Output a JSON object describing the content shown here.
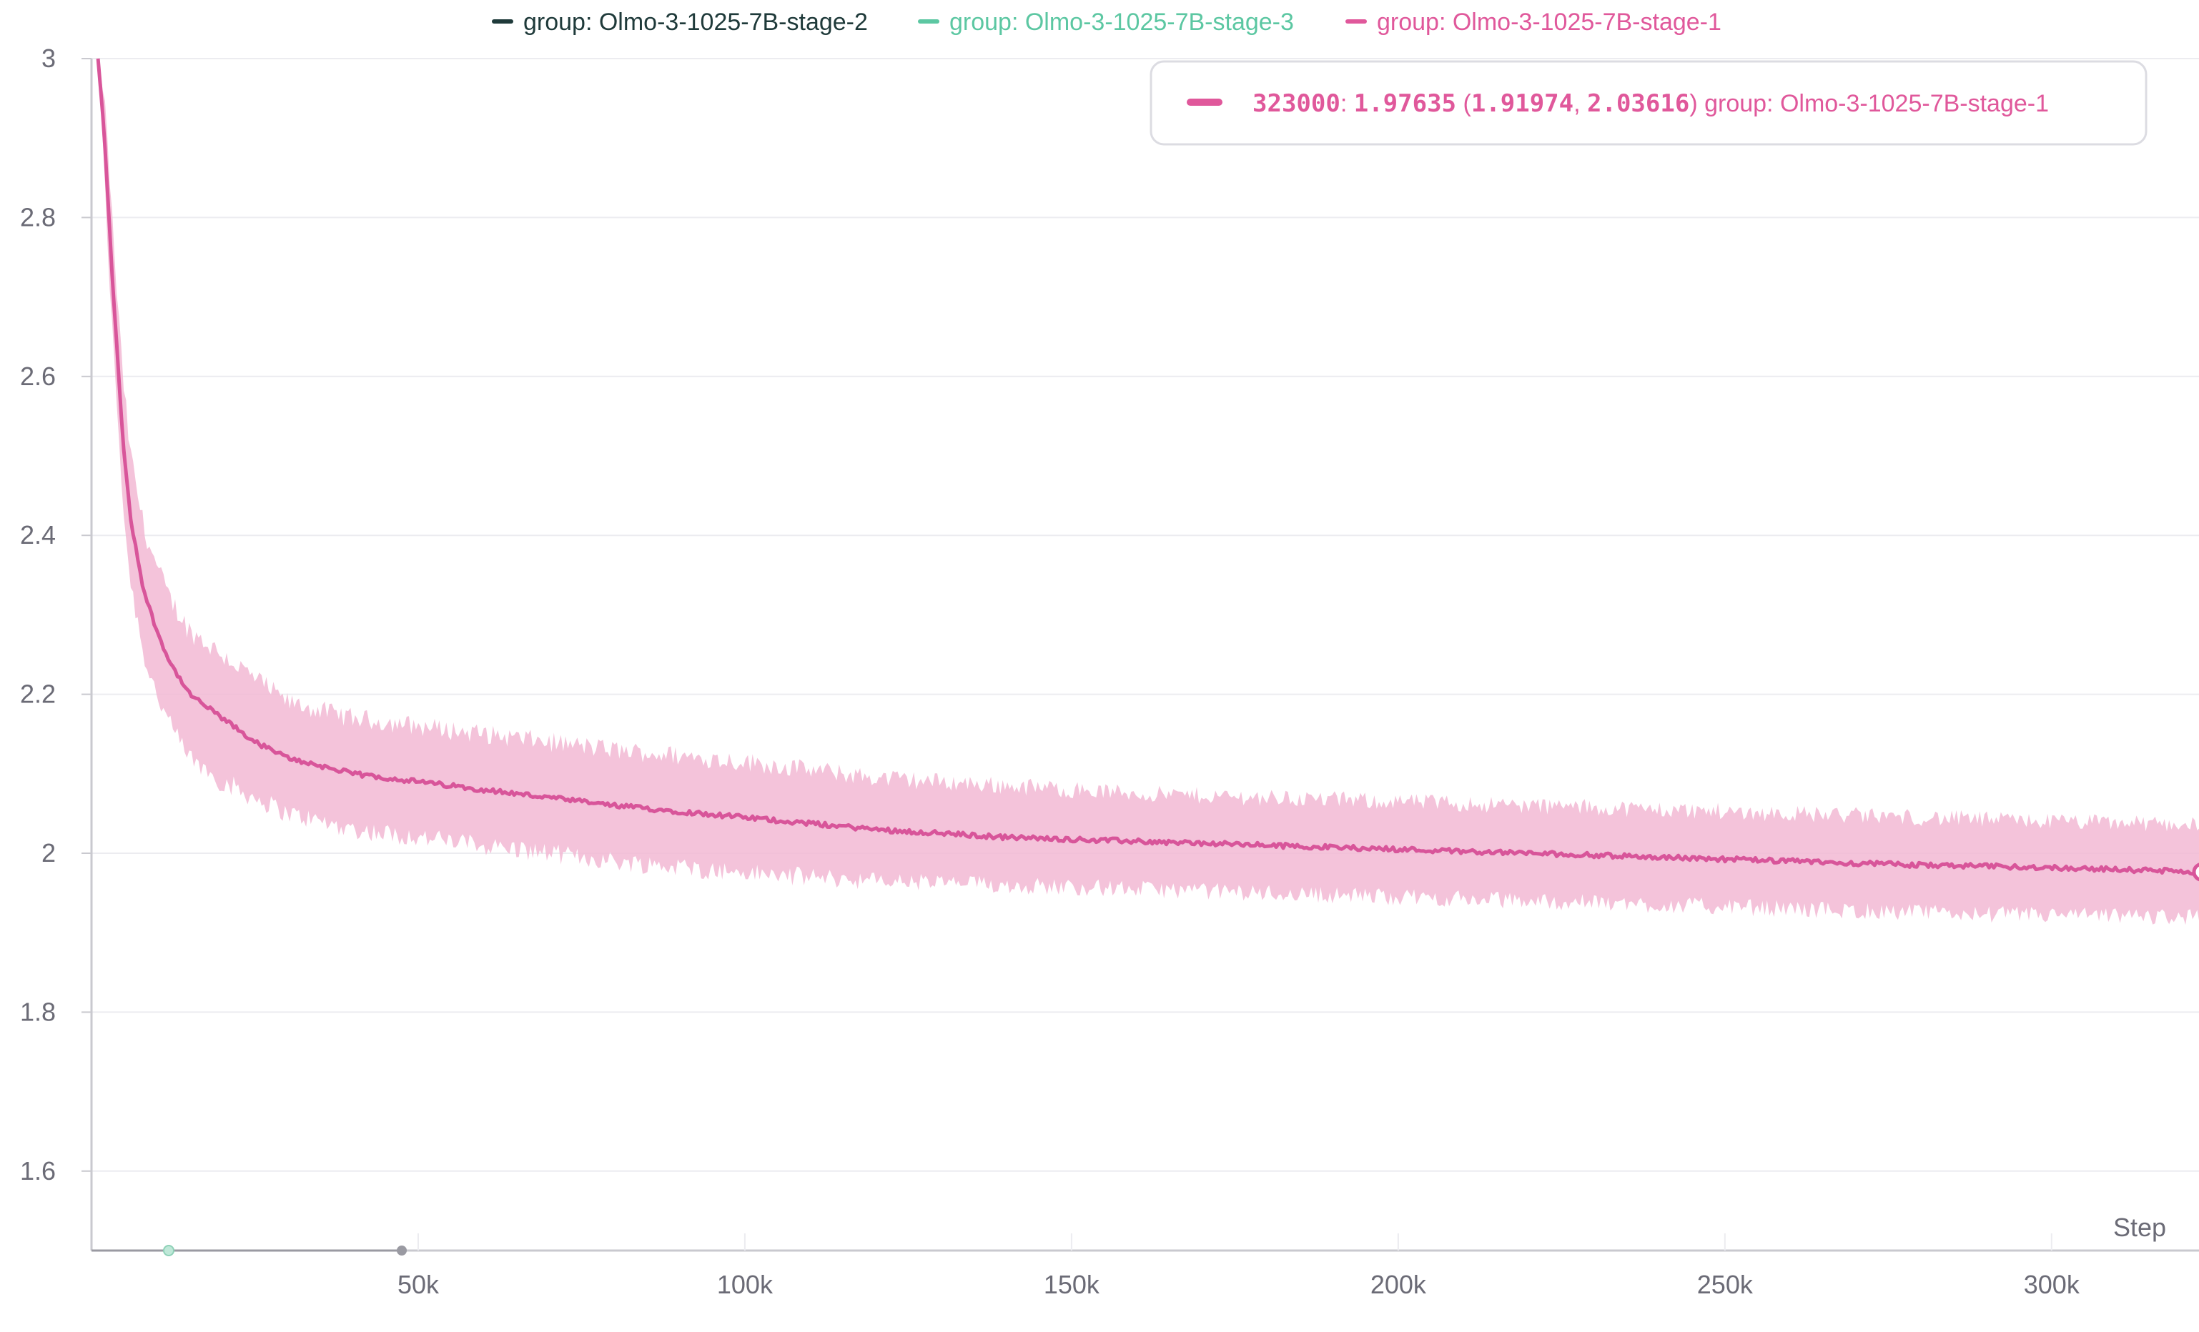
{
  "legend": {
    "items": [
      {
        "label": "group: Olmo-3-1025-7B-stage-2",
        "color": "#1f3a3a"
      },
      {
        "label": "group: Olmo-3-1025-7B-stage-3",
        "color": "#5cc7a2"
      },
      {
        "label": "group: Olmo-3-1025-7B-stage-1",
        "color": "#e0589b"
      }
    ]
  },
  "tooltip": {
    "step": "323000",
    "value": "1.97635",
    "low": "1.91974",
    "high": "2.03616",
    "group": "group: Olmo-3-1025-7B-stage-1",
    "color": "#e0589b"
  },
  "colors": {
    "line": "#d8559a",
    "band": "#f2b8d4",
    "grid": "#ececf0",
    "cursor": "#6fd3d8",
    "axis": "#c9c9cf"
  },
  "chart_data": {
    "type": "line",
    "title": "",
    "xlabel": "Step",
    "ylabel": "",
    "xlim": [
      0,
      323000
    ],
    "ylim": [
      1.5,
      3.0
    ],
    "grid": true,
    "legend_position": "top",
    "x_ticks": [
      50000,
      100000,
      150000,
      200000,
      250000,
      300000
    ],
    "x_tick_labels": [
      "50k",
      "100k",
      "150k",
      "200k",
      "250k",
      "300k"
    ],
    "y_ticks": [
      1.6,
      1.8,
      2.0,
      2.2,
      2.4,
      2.6,
      2.8,
      3.0
    ],
    "y_tick_labels": [
      "1.6",
      "1.8",
      "2",
      "2.2",
      "2.4",
      "2.6",
      "2.8",
      "3"
    ],
    "series": [
      {
        "name": "group: Olmo-3-1025-7B-stage-1",
        "color": "#e0589b",
        "x": [
          1000,
          2000,
          3000,
          4000,
          5000,
          6000,
          8000,
          10000,
          12000,
          15000,
          20000,
          25000,
          30000,
          40000,
          50000,
          60000,
          70000,
          80000,
          100000,
          120000,
          140000,
          160000,
          180000,
          200000,
          220000,
          240000,
          260000,
          280000,
          300000,
          323000
        ],
        "y": [
          3.0,
          2.9,
          2.75,
          2.62,
          2.5,
          2.42,
          2.33,
          2.28,
          2.24,
          2.2,
          2.17,
          2.14,
          2.12,
          2.1,
          2.09,
          2.08,
          2.07,
          2.06,
          2.045,
          2.03,
          2.02,
          2.015,
          2.01,
          2.005,
          2.0,
          1.995,
          1.99,
          1.985,
          1.982,
          1.97635
        ],
        "lower": [
          3.0,
          2.85,
          2.68,
          2.55,
          2.42,
          2.34,
          2.25,
          2.2,
          2.16,
          2.12,
          2.09,
          2.07,
          2.05,
          2.03,
          2.02,
          2.01,
          2.0,
          1.99,
          1.975,
          1.965,
          1.96,
          1.955,
          1.95,
          1.945,
          1.94,
          1.935,
          1.93,
          1.925,
          1.922,
          1.91974
        ],
        "upper": [
          3.0,
          2.95,
          2.82,
          2.69,
          2.58,
          2.5,
          2.41,
          2.36,
          2.32,
          2.28,
          2.25,
          2.22,
          2.19,
          2.17,
          2.16,
          2.15,
          2.14,
          2.13,
          2.115,
          2.095,
          2.085,
          2.075,
          2.07,
          2.065,
          2.06,
          2.055,
          2.05,
          2.045,
          2.04,
          2.03616
        ]
      },
      {
        "name": "group: Olmo-3-1025-7B-stage-2",
        "color": "#1f3a3a",
        "x": [],
        "y": []
      },
      {
        "name": "group: Olmo-3-1025-7B-stage-3",
        "color": "#5cc7a2",
        "x": [],
        "y": []
      }
    ],
    "cursor_x": 323000
  }
}
